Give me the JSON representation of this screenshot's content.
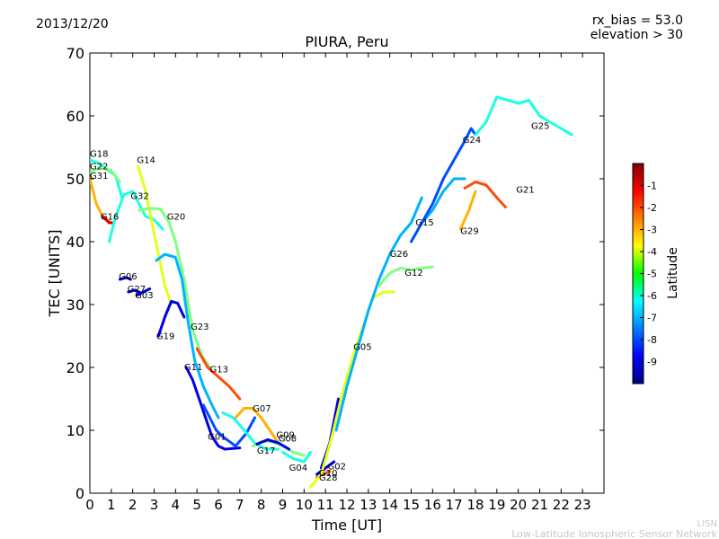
{
  "header": {
    "date": "2013/12/20",
    "bias_line": "rx_bias = 53.0",
    "elev_line": "elevation > 30"
  },
  "footer": {
    "org": "LISN",
    "org_full": "Low-Latitude Ionospheric Sensor Network"
  },
  "chart_data": {
    "type": "line",
    "title": "PIURA, Peru",
    "xlabel": "Time [UT]",
    "ylabel": "TEC [UNITS]",
    "xlim": [
      0,
      24
    ],
    "ylim": [
      0,
      70
    ],
    "xticks": [
      "0",
      "1",
      "2",
      "3",
      "4",
      "5",
      "6",
      "7",
      "8",
      "9",
      "10",
      "11",
      "12",
      "13",
      "14",
      "15",
      "16",
      "17",
      "18",
      "19",
      "20",
      "21",
      "22",
      "23"
    ],
    "yticks": [
      "0",
      "10",
      "20",
      "30",
      "40",
      "50",
      "60",
      "70"
    ],
    "grid": false,
    "colorbar": {
      "label": "Latitude",
      "range": [
        -10,
        0
      ],
      "ticks": [
        "-1",
        "-2",
        "-3",
        "-4",
        "-5",
        "-6",
        "-7",
        "-8",
        "-9"
      ],
      "colormap": "jet"
    },
    "series": [
      {
        "name": "G18",
        "lat": -6,
        "points": [
          [
            0,
            53
          ],
          [
            0.4,
            52.5
          ],
          [
            0.8,
            51.5
          ],
          [
            1.2,
            50.5
          ],
          [
            1.5,
            47
          ]
        ]
      },
      {
        "name": "G22",
        "lat": -5,
        "points": [
          [
            0,
            51
          ],
          [
            0.5,
            51.8
          ],
          [
            1.0,
            51.3
          ],
          [
            1.4,
            49.5
          ]
        ]
      },
      {
        "name": "G31",
        "lat": -3,
        "points": [
          [
            0,
            50
          ],
          [
            0.3,
            46
          ],
          [
            0.6,
            44
          ],
          [
            1.0,
            43
          ]
        ]
      },
      {
        "name": "G16",
        "lat": -1,
        "points": [
          [
            0.6,
            44
          ],
          [
            0.9,
            43
          ],
          [
            1.1,
            43
          ]
        ]
      },
      {
        "name": "G06",
        "lat": -9,
        "points": [
          [
            1.4,
            34
          ],
          [
            1.7,
            34.3
          ],
          [
            1.9,
            34
          ]
        ]
      },
      {
        "name": "G27",
        "lat": -9,
        "points": [
          [
            1.8,
            32
          ],
          [
            2.1,
            32.3
          ],
          [
            2.4,
            31.8
          ]
        ]
      },
      {
        "name": "G03",
        "lat": -9,
        "points": [
          [
            2.2,
            31.5
          ],
          [
            2.5,
            32
          ],
          [
            2.8,
            32.5
          ]
        ]
      },
      {
        "name": "G32",
        "lat": -6,
        "points": [
          [
            0.9,
            40
          ],
          [
            1.2,
            44
          ],
          [
            1.6,
            47.5
          ],
          [
            2.0,
            48
          ],
          [
            2.3,
            46
          ],
          [
            2.6,
            44
          ],
          [
            3.0,
            43.5
          ],
          [
            3.4,
            42
          ]
        ]
      },
      {
        "name": "G14",
        "lat": -4,
        "points": [
          [
            2.25,
            52
          ],
          [
            2.6,
            48
          ],
          [
            2.9,
            43
          ],
          [
            3.2,
            38
          ],
          [
            3.5,
            33
          ],
          [
            3.8,
            30
          ]
        ]
      },
      {
        "name": "G20",
        "lat": -5,
        "points": [
          [
            2.3,
            45
          ],
          [
            2.8,
            45.3
          ],
          [
            3.3,
            45.2
          ],
          [
            3.7,
            43
          ],
          [
            4.0,
            40
          ],
          [
            4.4,
            34
          ],
          [
            4.8,
            26
          ],
          [
            5.2,
            22
          ],
          [
            5.6,
            20
          ]
        ]
      },
      {
        "name": "G23",
        "lat": -7,
        "points": [
          [
            3.1,
            37
          ],
          [
            3.5,
            38
          ],
          [
            4.0,
            37.5
          ],
          [
            4.3,
            34
          ],
          [
            4.6,
            27
          ],
          [
            4.9,
            21
          ],
          [
            5.3,
            17
          ],
          [
            5.7,
            14
          ],
          [
            6.0,
            12
          ]
        ]
      },
      {
        "name": "G19",
        "lat": -9,
        "points": [
          [
            3.2,
            25
          ],
          [
            3.5,
            28
          ],
          [
            3.8,
            30.5
          ],
          [
            4.1,
            30.2
          ],
          [
            4.4,
            28
          ]
        ]
      },
      {
        "name": "G11",
        "lat": -9,
        "points": [
          [
            4.5,
            20
          ],
          [
            4.8,
            18
          ],
          [
            5.1,
            15
          ],
          [
            5.4,
            12
          ],
          [
            5.7,
            9
          ],
          [
            6.0,
            7.5
          ],
          [
            6.3,
            7
          ],
          [
            7.0,
            7.2
          ]
        ]
      },
      {
        "name": "G13",
        "lat": -2,
        "points": [
          [
            5.0,
            23
          ],
          [
            5.5,
            20
          ],
          [
            6.0,
            18.5
          ],
          [
            6.5,
            17
          ],
          [
            7.0,
            15
          ]
        ]
      },
      {
        "name": "G01",
        "lat": -8,
        "points": [
          [
            5.3,
            14
          ],
          [
            5.6,
            12
          ],
          [
            5.9,
            10
          ],
          [
            6.2,
            9
          ],
          [
            6.8,
            7.5
          ],
          [
            7.3,
            9.5
          ],
          [
            7.7,
            12
          ]
        ]
      },
      {
        "name": "G07",
        "lat": -3,
        "points": [
          [
            6.8,
            12
          ],
          [
            7.2,
            13.5
          ],
          [
            7.6,
            13.5
          ],
          [
            8.0,
            12
          ],
          [
            8.4,
            10
          ],
          [
            8.8,
            8
          ]
        ]
      },
      {
        "name": "G17",
        "lat": -6,
        "points": [
          [
            6.2,
            12.8
          ],
          [
            6.7,
            12
          ],
          [
            7.2,
            10
          ],
          [
            7.7,
            8
          ],
          [
            8.2,
            7
          ],
          [
            8.8,
            7
          ]
        ]
      },
      {
        "name": "G09",
        "lat": -5,
        "points": [
          [
            7.6,
            7.5
          ],
          [
            8.0,
            8.2
          ],
          [
            8.5,
            8.2
          ],
          [
            9.0,
            7.5
          ],
          [
            9.5,
            6.5
          ],
          [
            10.0,
            6
          ]
        ]
      },
      {
        "name": "G08",
        "lat": -9,
        "points": [
          [
            7.8,
            7.8
          ],
          [
            8.3,
            8.5
          ],
          [
            8.8,
            8
          ],
          [
            9.3,
            7
          ]
        ]
      },
      {
        "name": "G04",
        "lat": -6,
        "points": [
          [
            9.0,
            6.5
          ],
          [
            9.5,
            5.5
          ],
          [
            10.0,
            5
          ],
          [
            10.3,
            6.5
          ]
        ]
      },
      {
        "name": "G10",
        "lat": -9,
        "points": [
          [
            10.6,
            3
          ],
          [
            11.0,
            4
          ],
          [
            11.4,
            5
          ]
        ]
      },
      {
        "name": "G28",
        "lat": -2,
        "points": [
          [
            10.6,
            2.5
          ],
          [
            10.9,
            3
          ],
          [
            11.2,
            3.5
          ]
        ]
      },
      {
        "name": "G02",
        "lat": -9,
        "points": [
          [
            10.8,
            4
          ],
          [
            11.2,
            8
          ],
          [
            11.6,
            15
          ]
        ]
      },
      {
        "name": "G05",
        "lat": -4,
        "points": [
          [
            10.3,
            1
          ],
          [
            10.8,
            3
          ],
          [
            11.3,
            9
          ],
          [
            11.8,
            16
          ],
          [
            12.3,
            22
          ],
          [
            12.8,
            27
          ],
          [
            13.2,
            31
          ],
          [
            13.7,
            32
          ],
          [
            14.2,
            32
          ]
        ]
      },
      {
        "name": "G26",
        "lat": -7,
        "points": [
          [
            11.5,
            10
          ],
          [
            12.0,
            17
          ],
          [
            12.5,
            23
          ],
          [
            13.0,
            29
          ],
          [
            13.5,
            34
          ],
          [
            14.0,
            38
          ],
          [
            14.5,
            41
          ],
          [
            15.0,
            43
          ],
          [
            15.5,
            47
          ]
        ]
      },
      {
        "name": "G12",
        "lat": -5,
        "points": [
          [
            13.5,
            33
          ],
          [
            14.0,
            35
          ],
          [
            14.5,
            35.8
          ],
          [
            15.0,
            35.5
          ],
          [
            15.5,
            35.8
          ],
          [
            16.0,
            36
          ]
        ]
      },
      {
        "name": "G15",
        "lat": -7,
        "points": [
          [
            15.5,
            43
          ],
          [
            16.0,
            45
          ],
          [
            16.5,
            48
          ],
          [
            17.0,
            50
          ],
          [
            17.5,
            50
          ]
        ]
      },
      {
        "name": "G24",
        "lat": -8,
        "points": [
          [
            15.0,
            40
          ],
          [
            15.5,
            43
          ],
          [
            16.0,
            46
          ],
          [
            16.5,
            50
          ],
          [
            17.0,
            53
          ],
          [
            17.5,
            56
          ],
          [
            17.8,
            58
          ],
          [
            18.0,
            57
          ]
        ]
      },
      {
        "name": "G29",
        "lat": -3,
        "points": [
          [
            17.3,
            42
          ],
          [
            17.7,
            45
          ],
          [
            18.0,
            48
          ]
        ]
      },
      {
        "name": "G21",
        "lat": -2,
        "points": [
          [
            17.5,
            48.5
          ],
          [
            18.0,
            49.5
          ],
          [
            18.5,
            49
          ],
          [
            19.0,
            47
          ],
          [
            19.4,
            45.5
          ]
        ]
      },
      {
        "name": "G25",
        "lat": -6,
        "points": [
          [
            18.0,
            57
          ],
          [
            18.5,
            59
          ],
          [
            19.0,
            63
          ],
          [
            19.5,
            62.5
          ],
          [
            20.0,
            62
          ],
          [
            20.5,
            62.5
          ],
          [
            21.0,
            60
          ],
          [
            21.5,
            59
          ],
          [
            22.0,
            58
          ],
          [
            22.5,
            57
          ]
        ]
      }
    ],
    "annotations": [
      {
        "text": "G18",
        "x": 0.0,
        "y": 53.5
      },
      {
        "text": "G22",
        "x": 0.0,
        "y": 51.5
      },
      {
        "text": "G31",
        "x": 0.0,
        "y": 50.0
      },
      {
        "text": "G16",
        "x": 0.5,
        "y": 43.5
      },
      {
        "text": "G14",
        "x": 2.2,
        "y": 52.5
      },
      {
        "text": "G32",
        "x": 1.9,
        "y": 46.8
      },
      {
        "text": "G20",
        "x": 3.6,
        "y": 43.5
      },
      {
        "text": "G06",
        "x": 1.35,
        "y": 34.0
      },
      {
        "text": "G27",
        "x": 1.75,
        "y": 32.0
      },
      {
        "text": "G03",
        "x": 2.1,
        "y": 31.0
      },
      {
        "text": "G19",
        "x": 3.1,
        "y": 24.5
      },
      {
        "text": "G23",
        "x": 4.7,
        "y": 26.0
      },
      {
        "text": "G11",
        "x": 4.4,
        "y": 19.6
      },
      {
        "text": "G13",
        "x": 5.6,
        "y": 19.2
      },
      {
        "text": "G01",
        "x": 5.5,
        "y": 8.5
      },
      {
        "text": "G07",
        "x": 7.6,
        "y": 13.0
      },
      {
        "text": "G17",
        "x": 7.8,
        "y": 6.3
      },
      {
        "text": "G09",
        "x": 8.7,
        "y": 8.8
      },
      {
        "text": "G08",
        "x": 8.8,
        "y": 8.2
      },
      {
        "text": "G04",
        "x": 9.3,
        "y": 3.6
      },
      {
        "text": "G02",
        "x": 11.1,
        "y": 3.8
      },
      {
        "text": "G10",
        "x": 10.7,
        "y": 2.7
      },
      {
        "text": "G28",
        "x": 10.7,
        "y": 2.0
      },
      {
        "text": "G05",
        "x": 12.3,
        "y": 22.8
      },
      {
        "text": "G26",
        "x": 14.0,
        "y": 37.6
      },
      {
        "text": "G12",
        "x": 14.7,
        "y": 34.6
      },
      {
        "text": "G15",
        "x": 15.2,
        "y": 42.6
      },
      {
        "text": "G29",
        "x": 17.3,
        "y": 41.2
      },
      {
        "text": "G24",
        "x": 17.4,
        "y": 55.7
      },
      {
        "text": "G21",
        "x": 19.9,
        "y": 47.8
      },
      {
        "text": "G25",
        "x": 20.6,
        "y": 57.9
      }
    ]
  }
}
